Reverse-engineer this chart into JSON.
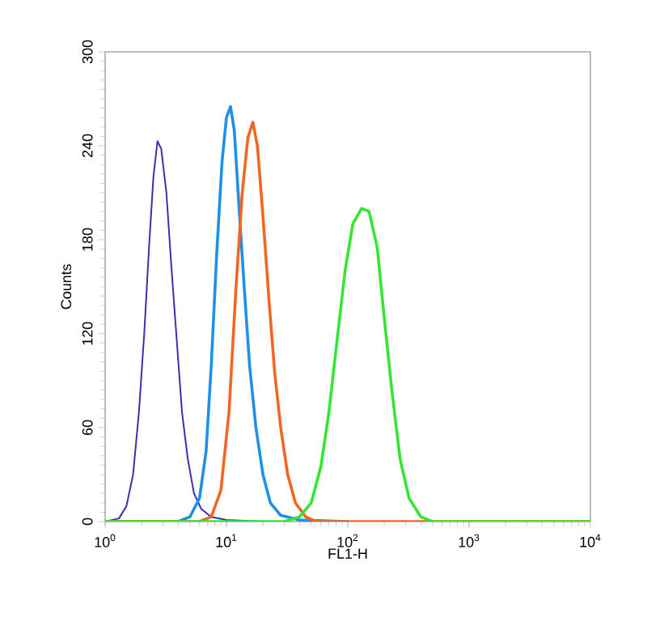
{
  "chart_data": {
    "type": "line",
    "xlabel": "FL1-H",
    "ylabel": "Counts",
    "log": "x",
    "marker": "none",
    "line_style": "solid",
    "xlim": [
      1,
      10000
    ],
    "ylim": [
      0,
      300
    ],
    "xticks": [
      {
        "value": 1,
        "label": "10$^{0}$"
      },
      {
        "value": 10,
        "label": "10$^{1}$"
      },
      {
        "value": 100,
        "label": "10$^{2}$"
      },
      {
        "value": 1000,
        "label": "10$^{3}$"
      },
      {
        "value": 10000,
        "label": "10$^{4}$"
      }
    ],
    "yticks": [
      0,
      60,
      120,
      180,
      240,
      300
    ],
    "series": [
      {
        "color": "#3a2fb0",
        "x": [
          1,
          1.3,
          1.5,
          1.7,
          1.9,
          2.1,
          2.3,
          2.5,
          2.7,
          2.9,
          3.2,
          3.5,
          3.9,
          4.3,
          4.8,
          5.4,
          6.2,
          7.5,
          10,
          20
        ],
        "values": [
          0,
          2,
          10,
          30,
          70,
          120,
          175,
          220,
          243,
          238,
          210,
          165,
          115,
          70,
          40,
          18,
          8,
          3,
          1,
          0
        ]
      },
      {
        "color": "#1e90e8",
        "x": [
          1,
          4,
          5,
          6,
          6.8,
          7.5,
          8.3,
          9.2,
          10,
          10.8,
          11.6,
          12.6,
          14,
          15.5,
          17.5,
          20,
          23,
          28,
          40,
          100
        ],
        "values": [
          0,
          0,
          3,
          15,
          45,
          100,
          170,
          230,
          258,
          265,
          250,
          205,
          150,
          100,
          60,
          30,
          12,
          4,
          1,
          0
        ]
      },
      {
        "color": "#f26522",
        "x": [
          1,
          6,
          7.5,
          9,
          10.5,
          12,
          13.5,
          15,
          16.5,
          18,
          20,
          22.5,
          25,
          28,
          32,
          37,
          45,
          55,
          10000
        ],
        "values": [
          0,
          0,
          3,
          20,
          70,
          150,
          210,
          245,
          255,
          240,
          195,
          140,
          95,
          60,
          30,
          12,
          3,
          0,
          0
        ]
      },
      {
        "color": "#33e633",
        "x": [
          1,
          30,
          40,
          50,
          60,
          70,
          80,
          95,
          110,
          130,
          150,
          175,
          200,
          230,
          270,
          320,
          400,
          500,
          10000
        ],
        "values": [
          0,
          0,
          3,
          12,
          35,
          70,
          110,
          160,
          190,
          200,
          198,
          175,
          130,
          85,
          40,
          15,
          3,
          0,
          0
        ]
      }
    ]
  }
}
